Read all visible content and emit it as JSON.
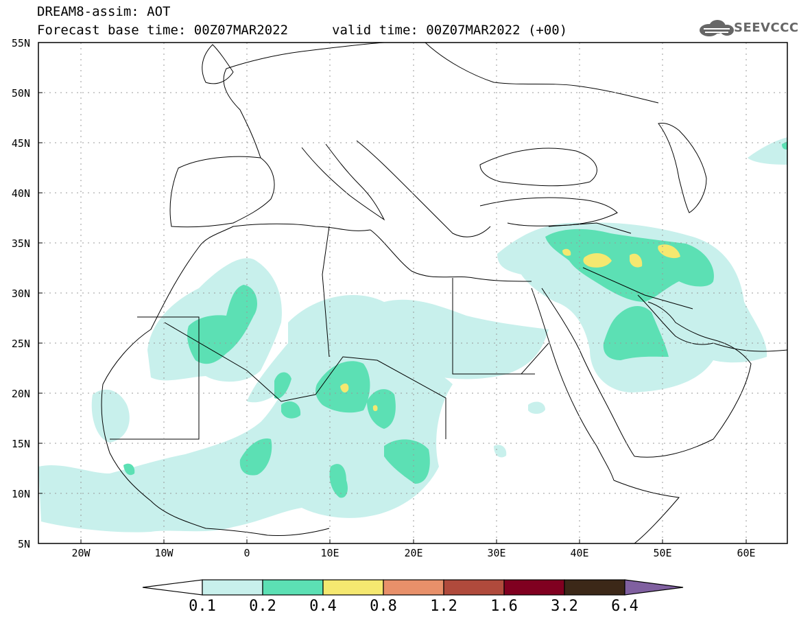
{
  "header": {
    "title_line1": "DREAM8-assim: AOT",
    "title_line2": "Forecast base time: 00Z07MAR2022",
    "valid_time": "valid time: 00Z07MAR2022 (+00)",
    "logo_text": "SEEVCCC"
  },
  "map": {
    "lat_labels": [
      "55N",
      "50N",
      "45N",
      "40N",
      "35N",
      "30N",
      "25N",
      "20N",
      "15N",
      "10N",
      "5N"
    ],
    "lon_labels": [
      "20W",
      "10W",
      "0",
      "10E",
      "20E",
      "30E",
      "40E",
      "50E",
      "60E"
    ],
    "lat_range": [
      5,
      55
    ],
    "lon_range": [
      -25,
      65
    ],
    "grid": "dotted"
  },
  "colorbar": {
    "levels": [
      "0.1",
      "0.2",
      "0.4",
      "0.8",
      "1.2",
      "1.6",
      "3.2",
      "6.4"
    ],
    "colors": [
      "#ffffff",
      "#c8f0ec",
      "#5ce0b4",
      "#f5e870",
      "#e8906a",
      "#b04a3c",
      "#800020",
      "#3c2818",
      "#8060a0"
    ]
  },
  "fields": {
    "light_color": "#c8f0ec",
    "mid_color": "#5ce0b4",
    "high_color": "#f5e870",
    "land_line_color": "#000000"
  }
}
